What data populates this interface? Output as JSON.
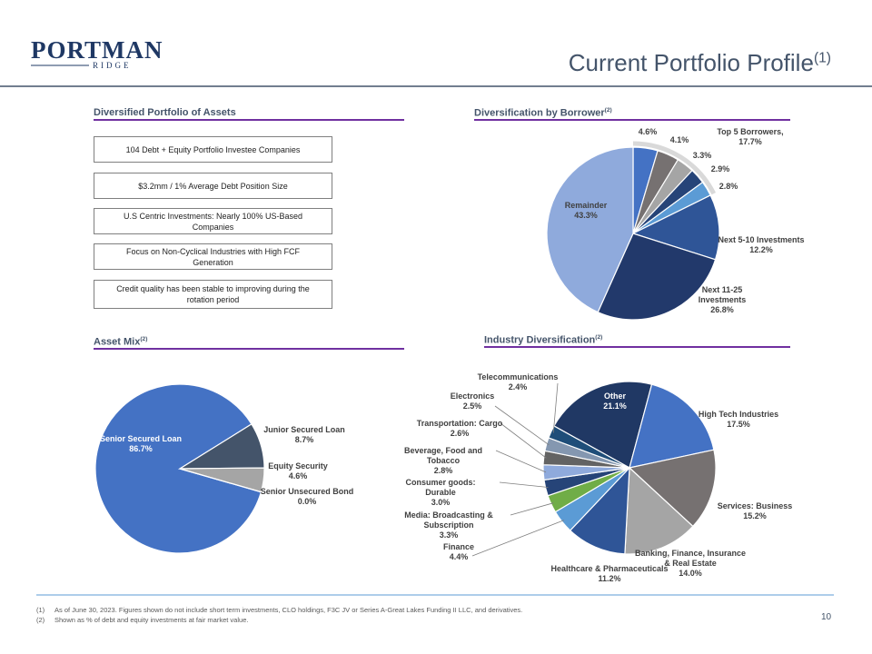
{
  "header": {
    "logo": "PORTMAN",
    "logo_sub": "RIDGE",
    "title": "Current Portfolio Profile",
    "title_note": "(1)"
  },
  "highlights": {
    "title": "Diversified Portfolio of Assets",
    "items": [
      "104 Debt + Equity Portfolio Investee Companies",
      "$3.2mm / 1% Average Debt Position Size",
      "U.S Centric Investments: Nearly 100% US-Based Companies",
      "Focus on Non-Cyclical Industries with High FCF Generation",
      "Credit quality has been stable to improving during the rotation period"
    ]
  },
  "chart_data": [
    {
      "type": "pie",
      "title": "Diversification by Borrower",
      "title_note": "(2)",
      "categories": [
        null,
        null,
        null,
        null,
        null,
        "Next 5-10 Investments",
        "Next 11-25 Investments",
        "Remainder"
      ],
      "values": [
        4.6,
        4.1,
        3.3,
        2.9,
        2.8,
        12.2,
        26.8,
        43.3
      ],
      "value_labels": [
        "4.6%",
        "4.1%",
        "3.3%",
        "2.9%",
        "2.8%",
        "12.2%",
        "26.8%",
        "43.3%"
      ],
      "colors": [
        "#4472c4",
        "#767171",
        "#a5a5a5",
        "#264478",
        "#5b9bd5",
        "#2f5597",
        "#22396b",
        "#8faadc"
      ],
      "annotation": {
        "text": "Top 5 Borrowers,",
        "value": 17.7,
        "value_label": "17.7%"
      }
    },
    {
      "type": "pie",
      "title": "Asset Mix",
      "title_note": "(2)",
      "categories": [
        "Senior Secured Loan",
        "Junior Secured Loan",
        "Equity Security",
        "Senior Unsecured Bond"
      ],
      "values": [
        86.7,
        8.7,
        4.6,
        0.0
      ],
      "value_labels": [
        "86.7%",
        "8.7%",
        "4.6%",
        "0.0%"
      ],
      "colors": [
        "#4472c4",
        "#44546a",
        "#a5a5a5",
        "#5b9bd5"
      ]
    },
    {
      "type": "pie",
      "title": "Industry Diversification",
      "title_note": "(2)",
      "categories": [
        "Other",
        "High Tech Industries",
        "Services: Business",
        "Banking, Finance, Insurance & Real Estate",
        "Healthcare & Pharmaceuticals",
        "Finance",
        "Media: Broadcasting & Subscription",
        "Consumer goods: Durable",
        "Beverage, Food and Tobacco",
        "Transportation: Cargo",
        "Electronics",
        "Telecommunications"
      ],
      "values": [
        21.1,
        17.5,
        15.2,
        14.0,
        11.2,
        4.4,
        3.3,
        3.0,
        2.8,
        2.6,
        2.5,
        2.4
      ],
      "value_labels": [
        "21.1%",
        "17.5%",
        "15.2%",
        "14.0%",
        "11.2%",
        "4.4%",
        "3.3%",
        "3.0%",
        "2.8%",
        "2.6%",
        "2.5%",
        "2.4%"
      ],
      "colors": [
        "#203864",
        "#4472c4",
        "#767171",
        "#a5a5a5",
        "#2f5597",
        "#5b9bd5",
        "#70ad47",
        "#264478",
        "#8faadc",
        "#636363",
        "#8497b0",
        "#1f4e79"
      ]
    }
  ],
  "footnotes": [
    {
      "marker": "(1)",
      "text": "As of June 30, 2023. Figures shown do not include short term investments, CLO holdings, F3C JV or Series A-Great Lakes Funding II LLC, and derivatives."
    },
    {
      "marker": "(2)",
      "text": "Shown as % of debt and equity investments at fair market value."
    }
  ],
  "page_number": "10"
}
